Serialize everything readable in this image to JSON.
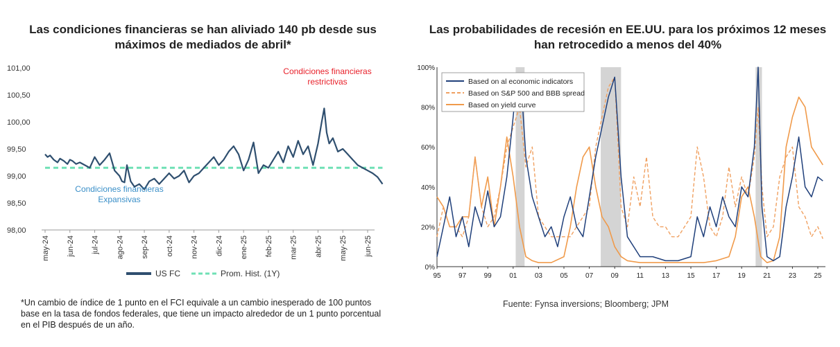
{
  "left_title": "Las condiciones financieras se han aliviado 140 pb desde sus máximos de mediados de abril*",
  "right_title": "Las probabilidades de recesión en EE.UU. para los próximos 12 meses han retrocedido a menos del 40%",
  "footnote": "*Un cambio de índice de 1 punto en el FCI equivale a un cambio inesperado de 100 puntos base en la tasa de fondos federales, que tiene un impacto alrededor de un 1 punto porcentual en el PIB después de un año.",
  "source": "Fuente: Fynsa inversions; Bloomberg; JPM",
  "colors": {
    "usfc": "#2f4f6f",
    "avg": "#6fe0b5",
    "restrictive": "#e8202a",
    "expansive": "#3a8fc8",
    "econ": "#1f3f7a",
    "sp": "#f0a060",
    "yield": "#f09a4a",
    "shade": "#d4d4d4"
  },
  "chart_data": [
    {
      "type": "line",
      "title": "Las condiciones financieras se han aliviado 140 pb desde sus máximos de mediados de abril*",
      "x_ticks": [
        "may-24",
        "jun-24",
        "jul-24",
        "ago-24",
        "sep-24",
        "oct-24",
        "nov-24",
        "dic-24",
        "ene-25",
        "feb-25",
        "mar-25",
        "abr-25",
        "may-25",
        "jun-25"
      ],
      "y_ticks": [
        "101,00",
        "100,50",
        "100,00",
        "99,50",
        "99,00",
        "98,50",
        "98,00"
      ],
      "ylim": [
        98.0,
        101.0
      ],
      "legend": {
        "position": "bottom",
        "entries": [
          "US FC",
          "Prom. Hist. (1Y)"
        ]
      },
      "annotations": {
        "restrictive": "Condiciones financieras restrictivas",
        "expansive": "Condiciones financieras Expansivas"
      },
      "series": [
        {
          "name": "US FC",
          "x": [
            0,
            0.1,
            0.2,
            0.35,
            0.5,
            0.6,
            0.75,
            0.9,
            1.0,
            1.1,
            1.25,
            1.4,
            1.6,
            1.8,
            2.0,
            2.2,
            2.4,
            2.6,
            2.8,
            3.0,
            3.1,
            3.2,
            3.3,
            3.45,
            3.6,
            3.8,
            4.0,
            4.2,
            4.4,
            4.6,
            4.8,
            5.0,
            5.2,
            5.4,
            5.6,
            5.8,
            6.0,
            6.2,
            6.4,
            6.6,
            6.8,
            7.0,
            7.2,
            7.4,
            7.6,
            7.8,
            8.0,
            8.2,
            8.4,
            8.6,
            8.8,
            9.0,
            9.2,
            9.4,
            9.6,
            9.8,
            10.0,
            10.2,
            10.4,
            10.6,
            10.8,
            11.0,
            11.15,
            11.25,
            11.35,
            11.45,
            11.6,
            11.8,
            12.0,
            12.2,
            12.4,
            12.6,
            12.8,
            13.0,
            13.2,
            13.4,
            13.6
          ],
          "values": [
            99.4,
            99.35,
            99.38,
            99.3,
            99.25,
            99.32,
            99.28,
            99.22,
            99.3,
            99.28,
            99.22,
            99.25,
            99.2,
            99.15,
            99.35,
            99.2,
            99.3,
            99.42,
            99.1,
            99.0,
            98.9,
            98.88,
            99.2,
            98.9,
            98.8,
            98.85,
            98.75,
            98.9,
            98.95,
            98.85,
            98.95,
            99.05,
            98.95,
            99.0,
            99.1,
            98.88,
            99.0,
            99.05,
            99.15,
            99.25,
            99.35,
            99.2,
            99.3,
            99.45,
            99.55,
            99.4,
            99.1,
            99.3,
            99.62,
            99.05,
            99.2,
            99.15,
            99.3,
            99.45,
            99.25,
            99.55,
            99.35,
            99.65,
            99.4,
            99.55,
            99.2,
            99.6,
            100.0,
            100.25,
            99.8,
            99.6,
            99.7,
            99.45,
            99.5,
            99.4,
            99.3,
            99.2,
            99.15,
            99.1,
            99.05,
            98.98,
            98.85
          ]
        },
        {
          "name": "Prom. Hist. (1Y)",
          "x": [
            0,
            13.6
          ],
          "values": [
            99.15,
            99.15
          ]
        }
      ]
    },
    {
      "type": "line",
      "title": "Las probabilidades de recesión en EE.UU. para los próximos 12 meses han retrocedido a menos del 40%",
      "x_ticks": [
        "95",
        "97",
        "99",
        "01",
        "03",
        "05",
        "07",
        "09",
        "11",
        "13",
        "15",
        "17",
        "19",
        "21",
        "23",
        "25"
      ],
      "y_ticks": [
        "100%",
        "80%",
        "60%",
        "40%",
        "20%",
        "0%"
      ],
      "ylim": [
        0,
        100
      ],
      "xlim": [
        1995,
        2025.6
      ],
      "legend": {
        "position": "top-left",
        "entries": [
          "Based on al economic indicators",
          "Based on S&P 500 and BBB spread",
          "Based on yield curve"
        ]
      },
      "recession_shading": [
        [
          2001.2,
          2001.9
        ],
        [
          2007.9,
          2009.5
        ],
        [
          2020.1,
          2020.6
        ]
      ],
      "series": [
        {
          "name": "Based on al economic indicators",
          "x": [
            1995,
            1995.5,
            1996,
            1996.5,
            1997,
            1997.5,
            1998,
            1998.5,
            1999,
            1999.5,
            2000,
            2000.5,
            2001,
            2001.3,
            2001.7,
            2002,
            2002.5,
            2003,
            2003.5,
            2004,
            2004.5,
            2005,
            2005.5,
            2006,
            2006.5,
            2007,
            2007.5,
            2008,
            2008.5,
            2009,
            2009.5,
            2010,
            2011,
            2012,
            2013,
            2014,
            2015,
            2015.5,
            2016,
            2016.5,
            2017,
            2017.5,
            2018,
            2018.5,
            2019,
            2019.5,
            2020,
            2020.3,
            2020.6,
            2021,
            2021.5,
            2022,
            2022.5,
            2023,
            2023.5,
            2024,
            2024.5,
            2025,
            2025.4
          ],
          "values": [
            5,
            20,
            35,
            15,
            25,
            10,
            30,
            20,
            38,
            20,
            25,
            45,
            75,
            95,
            85,
            55,
            35,
            25,
            15,
            20,
            10,
            25,
            35,
            20,
            15,
            35,
            55,
            70,
            85,
            95,
            45,
            15,
            5,
            5,
            3,
            3,
            5,
            25,
            15,
            30,
            20,
            35,
            25,
            20,
            40,
            35,
            60,
            100,
            30,
            5,
            3,
            5,
            30,
            45,
            65,
            40,
            35,
            45,
            43
          ]
        },
        {
          "name": "Based on S&P 500 and BBB spread",
          "x": [
            1995,
            1995.5,
            1996,
            1996.5,
            1997,
            1997.5,
            1998,
            1998.5,
            1999,
            1999.5,
            2000,
            2000.5,
            2001,
            2001.5,
            2002,
            2002.5,
            2003,
            2003.5,
            2004,
            2004.5,
            2005,
            2005.5,
            2006,
            2006.5,
            2007,
            2007.5,
            2008,
            2008.5,
            2009,
            2009.5,
            2010,
            2010.5,
            2011,
            2011.5,
            2012,
            2012.5,
            2013,
            2013.5,
            2014,
            2014.5,
            2015,
            2015.5,
            2016,
            2016.5,
            2017,
            2017.5,
            2018,
            2018.5,
            2019,
            2019.5,
            2020,
            2020.3,
            2020.6,
            2021,
            2021.5,
            2022,
            2022.5,
            2023,
            2023.5,
            2024,
            2024.5,
            2025,
            2025.4
          ],
          "values": [
            15,
            30,
            20,
            20,
            15,
            25,
            55,
            30,
            20,
            25,
            40,
            60,
            70,
            80,
            50,
            60,
            25,
            20,
            15,
            15,
            15,
            15,
            20,
            25,
            30,
            60,
            75,
            90,
            95,
            30,
            20,
            45,
            30,
            55,
            25,
            20,
            20,
            15,
            15,
            20,
            25,
            60,
            45,
            20,
            15,
            25,
            50,
            30,
            45,
            35,
            55,
            80,
            40,
            15,
            20,
            45,
            55,
            60,
            30,
            25,
            15,
            20,
            14
          ]
        },
        {
          "name": "Based on yield curve",
          "x": [
            1995,
            1995.5,
            1996,
            1996.5,
            1997,
            1997.5,
            1998,
            1998.5,
            1999,
            1999.5,
            2000,
            2000.5,
            2001,
            2001.5,
            2002,
            2002.5,
            2003,
            2004,
            2005,
            2005.5,
            2006,
            2006.5,
            2007,
            2007.5,
            2008,
            2008.5,
            2009,
            2009.5,
            2010,
            2011,
            2012,
            2013,
            2014,
            2015,
            2016,
            2017,
            2018,
            2018.5,
            2019,
            2019.5,
            2020,
            2020.5,
            2021,
            2021.5,
            2022,
            2022.5,
            2023,
            2023.5,
            2024,
            2024.5,
            2025,
            2025.4
          ],
          "values": [
            35,
            30,
            20,
            20,
            25,
            25,
            55,
            30,
            45,
            20,
            40,
            65,
            45,
            20,
            5,
            3,
            2,
            2,
            5,
            20,
            40,
            55,
            60,
            40,
            25,
            20,
            10,
            5,
            3,
            2,
            2,
            2,
            2,
            2,
            2,
            3,
            5,
            15,
            35,
            40,
            25,
            5,
            2,
            3,
            15,
            60,
            75,
            85,
            80,
            60,
            55,
            51
          ]
        }
      ]
    }
  ]
}
